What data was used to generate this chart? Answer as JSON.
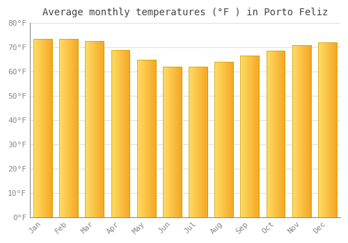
{
  "title": "Average monthly temperatures (°F ) in Porto Feliz",
  "months": [
    "Jan",
    "Feb",
    "Mar",
    "Apr",
    "May",
    "Jun",
    "Jul",
    "Aug",
    "Sep",
    "Oct",
    "Nov",
    "Dec"
  ],
  "values": [
    73.5,
    73.5,
    72.5,
    69.0,
    65.0,
    62.0,
    62.0,
    64.0,
    66.5,
    68.5,
    71.0,
    72.0
  ],
  "bar_color_left": "#FFD966",
  "bar_color_right": "#F5A623",
  "bar_edge_color": "#C8A000",
  "ylim": [
    0,
    80
  ],
  "yticks": [
    0,
    10,
    20,
    30,
    40,
    50,
    60,
    70,
    80
  ],
  "ytick_labels": [
    "0°F",
    "10°F",
    "20°F",
    "30°F",
    "40°F",
    "50°F",
    "60°F",
    "70°F",
    "80°F"
  ],
  "background_color": "#ffffff",
  "grid_color": "#e0e0e0",
  "title_fontsize": 10,
  "tick_fontsize": 8,
  "font_family": "monospace"
}
